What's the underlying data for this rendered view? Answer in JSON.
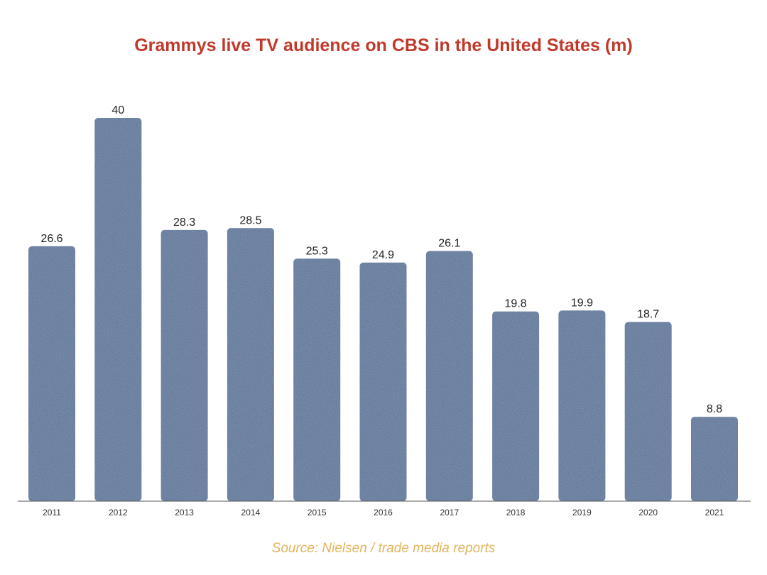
{
  "chart_data": {
    "type": "bar",
    "title": "Grammys live TV audience on CBS in the United States (m)",
    "categories": [
      "2011",
      "2012",
      "2013",
      "2014",
      "2015",
      "2016",
      "2017",
      "2018",
      "2019",
      "2020",
      "2021"
    ],
    "values": [
      26.6,
      40,
      28.3,
      28.5,
      25.3,
      24.9,
      26.1,
      19.8,
      19.9,
      18.7,
      8.8
    ],
    "value_labels": [
      "26.6",
      "40",
      "28.3",
      "28.5",
      "25.3",
      "24.9",
      "26.1",
      "19.8",
      "19.9",
      "18.7",
      "8.8"
    ],
    "xlabel": "",
    "ylabel": "",
    "ylim": [
      0,
      40
    ],
    "grid": false,
    "legend": "none",
    "source": "Source: Nielsen / trade media reports",
    "colors": {
      "bar": "#4f6d95",
      "title": "#c0392b",
      "source": "#e3b45c"
    }
  }
}
